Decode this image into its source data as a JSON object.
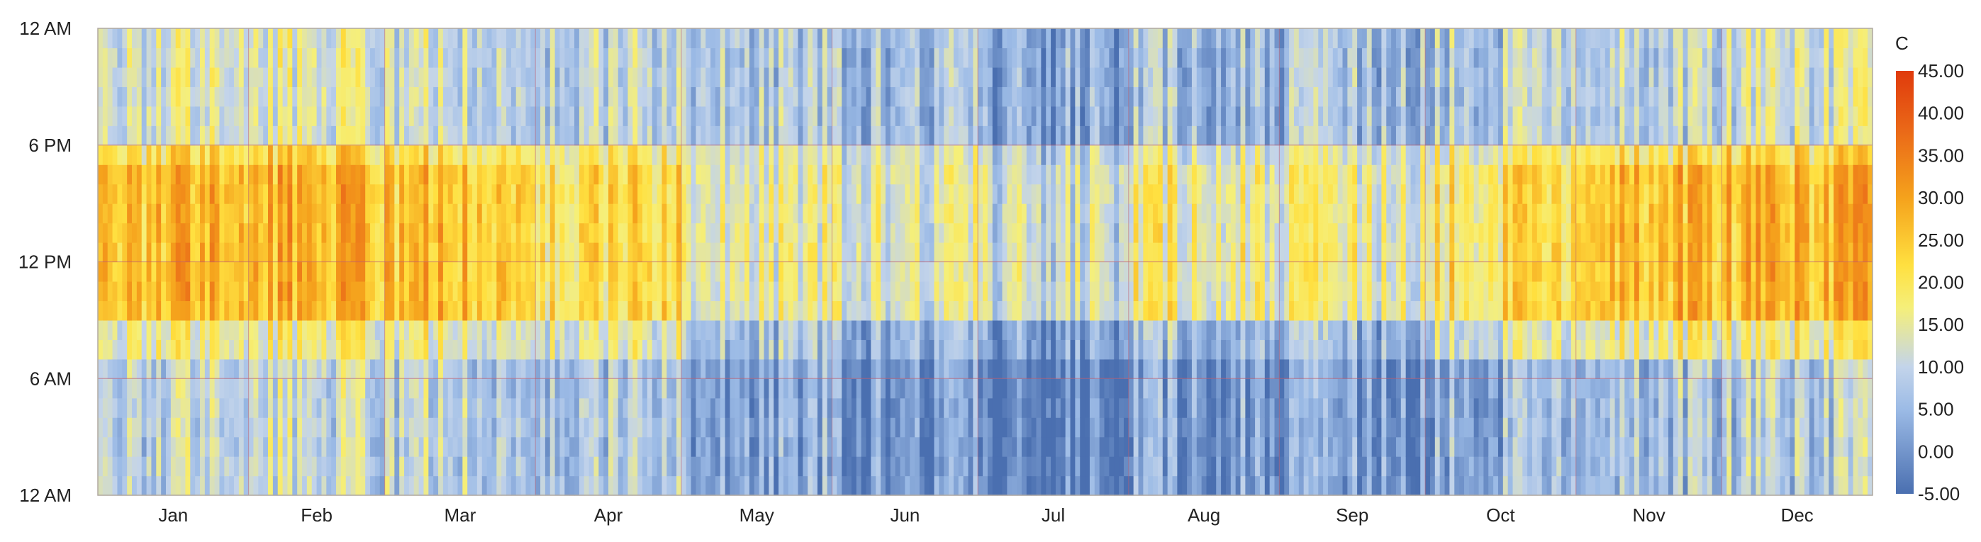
{
  "chart_data": {
    "type": "heatmap",
    "title": "",
    "xlabel": "",
    "ylabel": "",
    "x_axis": {
      "months": [
        "Jan",
        "Feb",
        "Mar",
        "Apr",
        "May",
        "Jun",
        "Jul",
        "Aug",
        "Sep",
        "Oct",
        "Nov",
        "Dec"
      ],
      "days_in_month": [
        31,
        28,
        31,
        30,
        31,
        30,
        31,
        31,
        30,
        31,
        30,
        31
      ],
      "days": 365
    },
    "y_axis": {
      "hours": 24,
      "tick_labels": [
        "12 AM",
        "6 AM",
        "12 PM",
        "6 PM",
        "12 AM"
      ],
      "tick_hours": [
        0,
        6,
        12,
        18,
        24
      ]
    },
    "colorbar": {
      "title": "C",
      "min": -5,
      "max": 45,
      "tick_labels": [
        "45.00",
        "40.00",
        "35.00",
        "30.00",
        "25.00",
        "20.00",
        "15.00",
        "10.00",
        "5.00",
        "0.00",
        "-5.00"
      ],
      "tick_values": [
        45,
        40,
        35,
        30,
        25,
        20,
        15,
        10,
        5,
        0,
        -5
      ],
      "colors": [
        {
          "value": -5,
          "color": "#4a6fb0"
        },
        {
          "value": 5,
          "color": "#9cbbe6"
        },
        {
          "value": 10,
          "color": "#c3d4ea"
        },
        {
          "value": 17,
          "color": "#f5ef7a"
        },
        {
          "value": 22,
          "color": "#ffe040"
        },
        {
          "value": 30,
          "color": "#f5a21c"
        },
        {
          "value": 38,
          "color": "#ea6818"
        },
        {
          "value": 45,
          "color": "#e03a0c"
        }
      ]
    },
    "grid": true,
    "legend_position": "right",
    "monthly_profile": [
      {
        "month": "Jan",
        "night": 10,
        "morning": 16,
        "midday": 27,
        "evening": 13
      },
      {
        "month": "Feb",
        "night": 10,
        "morning": 16,
        "midday": 27,
        "evening": 13
      },
      {
        "month": "Mar",
        "night": 9,
        "morning": 15,
        "midday": 26,
        "evening": 11
      },
      {
        "month": "Apr",
        "night": 8,
        "morning": 14,
        "midday": 22,
        "evening": 10
      },
      {
        "month": "May",
        "night": 3,
        "morning": 7,
        "midday": 15,
        "evening": 8
      },
      {
        "month": "Jun",
        "night": 0,
        "morning": 4,
        "midday": 13,
        "evening": 6
      },
      {
        "month": "Jul",
        "night": -4,
        "morning": 1,
        "midday": 11,
        "evening": 2
      },
      {
        "month": "Aug",
        "night": 2,
        "morning": 6,
        "midday": 17,
        "evening": 6
      },
      {
        "month": "Sep",
        "night": 1,
        "morning": 5,
        "midday": 15,
        "evening": 6
      },
      {
        "month": "Oct",
        "night": 4,
        "morning": 12,
        "midday": 20,
        "evening": 8
      },
      {
        "month": "Nov",
        "night": 7,
        "morning": 17,
        "midday": 27,
        "evening": 10
      },
      {
        "month": "Dec",
        "night": 8,
        "morning": 17,
        "midday": 27,
        "evening": 12
      }
    ]
  }
}
